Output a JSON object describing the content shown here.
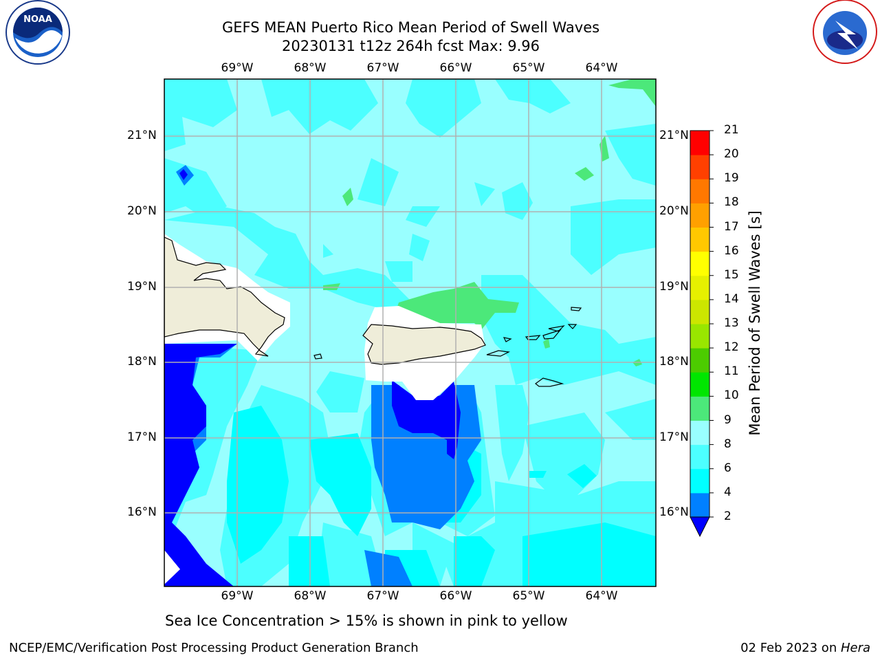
{
  "title_line1": "GEFS MEAN Puerto Rico Mean Period of Swell Waves",
  "title_line2": "20230131 t12z 264h fcst   Max: 9.96",
  "lon_labels": [
    "69°W",
    "68°W",
    "67°W",
    "66°W",
    "65°W",
    "64°W"
  ],
  "lat_labels": [
    "21°N",
    "20°N",
    "19°N",
    "18°N",
    "17°N",
    "16°N"
  ],
  "colorbar": {
    "title": "Mean Period of Swell Waves [s]",
    "ticks": [
      "2",
      "4",
      "6",
      "8",
      "9",
      "10",
      "11",
      "12",
      "13",
      "14",
      "15",
      "16",
      "17",
      "18",
      "19",
      "20",
      "21"
    ],
    "colors": [
      "#0000ff",
      "#0080ff",
      "#00ffff",
      "#4cffff",
      "#99ffff",
      "#4ce87a",
      "#00e600",
      "#4ccc00",
      "#99e600",
      "#cce600",
      "#e6f000",
      "#ffff00",
      "#ffc800",
      "#ffa000",
      "#ff7800",
      "#ff4000",
      "#ff0000"
    ]
  },
  "caption": "Sea Ice Concentration > 15% is shown in pink to yellow",
  "footer_left": "NCEP/EMC/Verification Post Processing Product Generation Branch",
  "footer_date": "02 Feb 2023 on ",
  "footer_host": "Hera",
  "logos": {
    "left": "noaa-logo",
    "right": "nws-logo"
  }
}
